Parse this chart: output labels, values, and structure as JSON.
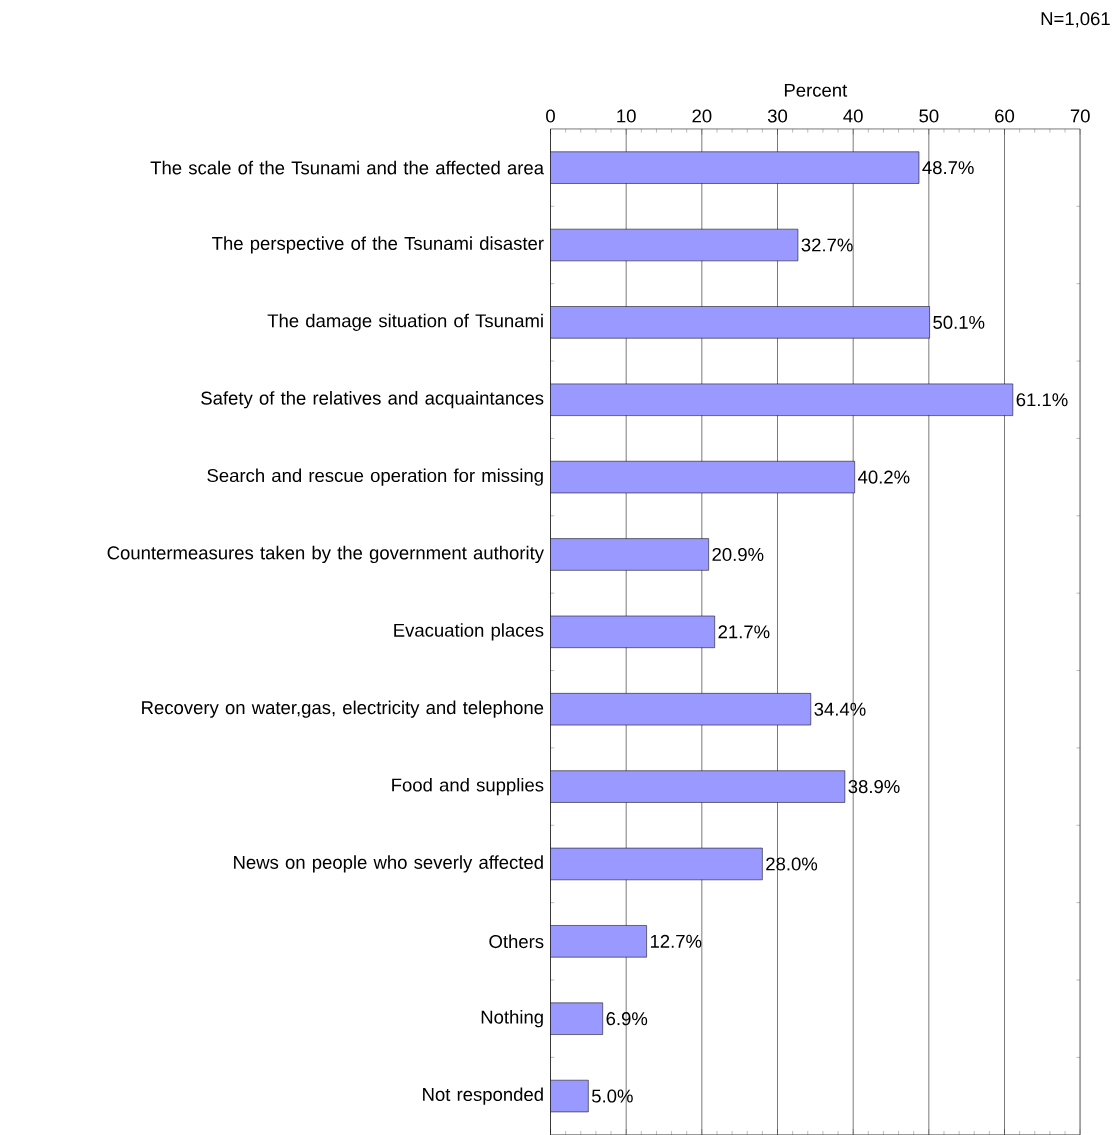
{
  "chart_data": {
    "type": "bar",
    "orientation": "horizontal",
    "xlabel": "Percent",
    "annotations": [
      "N=1,061"
    ],
    "categories": [
      "The scale of the Tsunami and the affected area",
      "The perspective of the Tsunami disaster",
      "The damage situation of Tsunami",
      "Safety of the relatives and acquaintances",
      "Search and rescue operation for missing",
      "Countermeasures taken by the government authority",
      "Evacuation places",
      "Recovery on water,gas, electricity and telephone",
      "Food and supplies",
      "News on people who severly affected",
      "Others",
      "Nothing",
      "Not responded"
    ],
    "values": [
      48.7,
      32.7,
      50.1,
      61.1,
      40.2,
      20.9,
      21.7,
      34.4,
      38.9,
      28.0,
      12.7,
      6.9,
      5.0
    ],
    "value_labels": [
      "48.7%",
      "32.7%",
      "50.1%",
      "61.1%",
      "40.2%",
      "20.9%",
      "21.7%",
      "34.4%",
      "38.9%",
      "28.0%",
      "12.7%",
      "6.9%",
      "5.0%"
    ],
    "color": "#9999ff",
    "xlim": [
      0,
      70
    ],
    "xticks": [
      0,
      10,
      20,
      30,
      40,
      50,
      60,
      70
    ],
    "grid": "x"
  }
}
